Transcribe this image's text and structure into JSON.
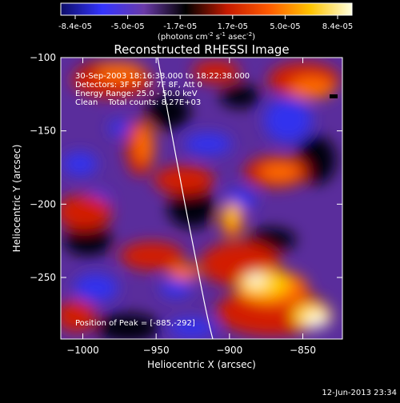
{
  "colorbar": {
    "tick_labels": [
      "-8.4e-05",
      "-5.0e-05",
      "-1.7e-05",
      "1.7e-05",
      "5.0e-05",
      "8.4e-05"
    ],
    "unit_prefix": "(photons cm",
    "unit_exp1": "-2",
    "unit_mid": " s",
    "unit_exp2": "-1",
    "unit_mid2": " asec",
    "unit_exp3": "-2",
    "unit_suffix": ")",
    "stops": [
      "#0d0d68",
      "#3434ff",
      "#6a3aa8",
      "#000000",
      "#c51a00",
      "#ff5a00",
      "#ffc400",
      "#ffffe0"
    ]
  },
  "plot": {
    "title": "Reconstructed RHESSI Image",
    "info_lines": [
      "30-Sep-2003 18:16:38.000 to 18:22:38.000",
      "Detectors: 3F 5F 6F 7F 8F, Att 0",
      "Energy Range: 25.0 - 50.0 keV",
      "Clean    Total counts: 8.27E+03"
    ],
    "peak_label": "Position of Peak = [-885,-292]",
    "xlabel": "Heliocentric X (arcsec)",
    "ylabel": "Heliocentric Y (arcsec)",
    "x_ticks": [
      "-1000",
      "-950",
      "-900",
      "-850"
    ],
    "y_ticks": [
      "-100",
      "-150",
      "-200",
      "-250"
    ]
  },
  "footer": {
    "date": "12-Jun-2013 23:34"
  }
}
